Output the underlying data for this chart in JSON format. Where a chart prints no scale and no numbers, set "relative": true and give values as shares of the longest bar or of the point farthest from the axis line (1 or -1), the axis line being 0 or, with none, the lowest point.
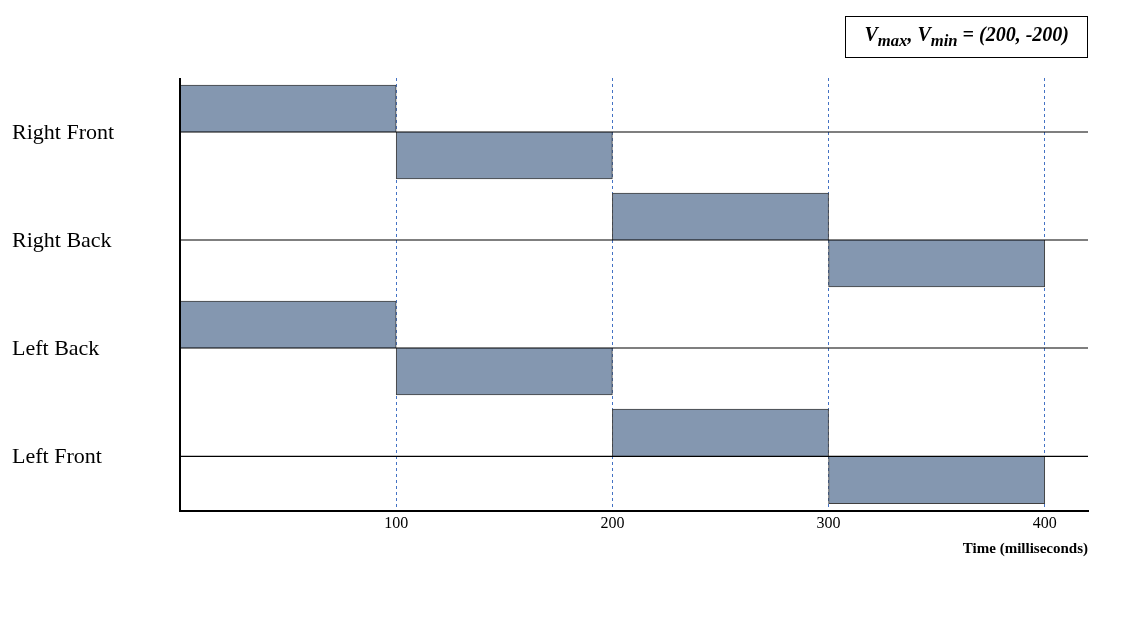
{
  "chart_data": [
    {
      "type": "bar",
      "ylabel": "Right Front",
      "x": [
        50,
        150,
        250,
        350
      ],
      "values": [
        1,
        -1,
        0,
        0
      ],
      "relative": true,
      "color": "#8497b0",
      "xlim": [
        0,
        420
      ],
      "xticks": [
        100,
        200,
        300,
        400
      ],
      "grid": "x",
      "tick_labels": false,
      "annotations": [
        "V$_{max}$, V$_{min}$ = (200, -200)"
      ]
    },
    {
      "type": "bar",
      "ylabel": "Right Back",
      "x": [
        50,
        150,
        250,
        350
      ],
      "values": [
        0,
        0,
        1,
        -1
      ],
      "relative": true,
      "color": "#8497b0",
      "xlim": [
        0,
        420
      ],
      "xticks": [
        100,
        200,
        300,
        400
      ],
      "grid": "x",
      "tick_labels": false
    },
    {
      "type": "bar",
      "ylabel": "Left Back",
      "x": [
        50,
        150,
        250,
        350
      ],
      "values": [
        1,
        -1,
        0,
        0
      ],
      "relative": true,
      "color": "#8497b0",
      "xlim": [
        0,
        420
      ],
      "xticks": [
        100,
        200,
        300,
        400
      ],
      "grid": "x",
      "tick_labels": false
    },
    {
      "type": "bar",
      "ylabel": "Left Front",
      "x": [
        50,
        150,
        250,
        350
      ],
      "values": [
        0,
        0,
        1,
        -1
      ],
      "relative": true,
      "color": "#8497b0",
      "xlim": [
        0,
        420
      ],
      "xticks": [
        100,
        200,
        300,
        400
      ],
      "grid": "x",
      "tick_labels": "x",
      "xlabel": "Time (milliseconds)"
    }
  ]
}
